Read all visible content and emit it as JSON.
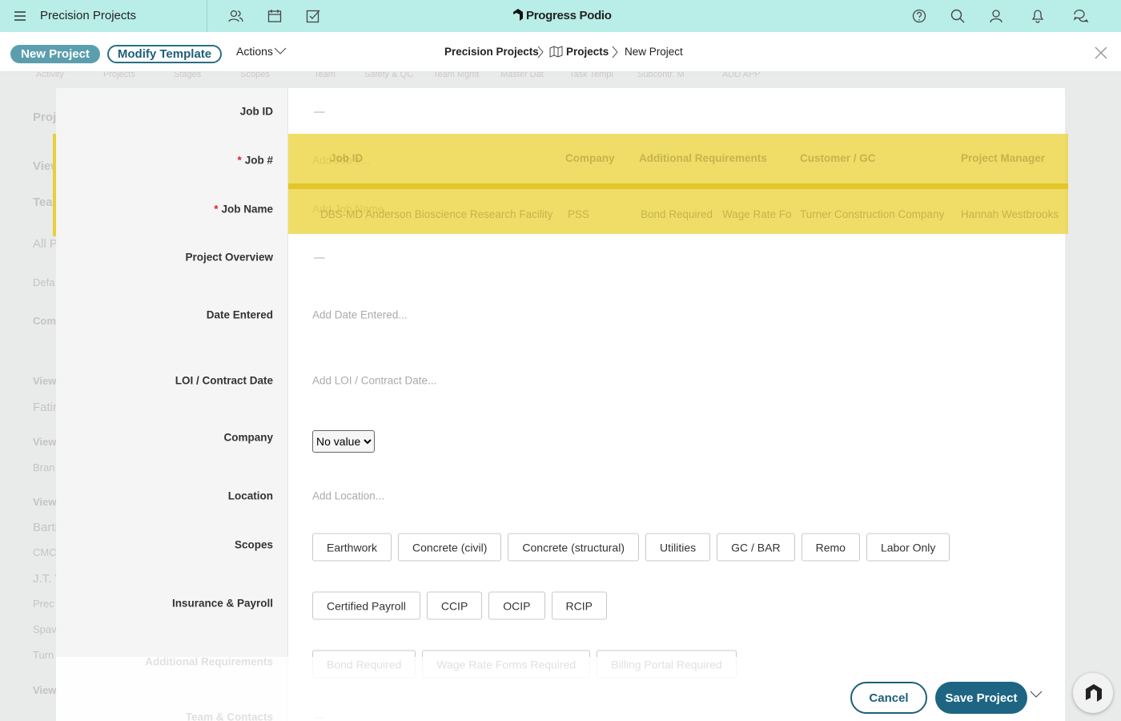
{
  "topbar": {
    "app_title": "Precision Projects",
    "brand": "Progress Podio"
  },
  "toolbar": {
    "buttons": [
      "New Project",
      "Modify Template"
    ],
    "actions": "Actions",
    "breadcrumb": [
      "Precision Projects",
      "Projects",
      "New Project"
    ]
  },
  "background": {
    "tabs": [
      "Activity",
      "Projects",
      "Stages",
      "Scopes",
      "Team",
      "Safety & QC",
      "Team Mgmt",
      "Master Dat",
      "Task Templ",
      "Subcontr. M",
      "ADD APP"
    ],
    "sidebar": [
      "Proj",
      "View",
      "Team",
      "All P",
      "Defa",
      "Com",
      "View",
      "Fatin",
      "View",
      "Bran",
      "View",
      "Barti",
      "CMC",
      "J.T. V",
      "Prec",
      "Spav",
      "Turn",
      "View"
    ],
    "table": {
      "headers": [
        "Job ID",
        "Company",
        "Additional Requirements",
        "Customer / GC",
        "Project Manager"
      ],
      "row": [
        "DBS-MD Anderson Bioscience Research Facility",
        "PSS",
        "Bond Required",
        "Wage Rate For",
        "Turner Construction Company",
        "Hannah Westbrooks"
      ]
    }
  },
  "form": {
    "fields": [
      {
        "label": "Job ID",
        "value": "—"
      },
      {
        "label": "Job #",
        "required": "*",
        "placeholder": "Add Job #..."
      },
      {
        "label": "Job Name",
        "required": "*",
        "placeholder": "Add Job Name..."
      },
      {
        "label": "Project Overview",
        "value": "—"
      },
      {
        "label": "Date Entered",
        "placeholder": "Add Date Entered..."
      },
      {
        "label": "LOI / Contract Date",
        "placeholder": "Add LOI / Contract Date..."
      },
      {
        "label": "Company",
        "select": "No value"
      },
      {
        "label": "Location",
        "placeholder": "Add Location..."
      },
      {
        "label": "Scopes",
        "options": [
          "Earthwork",
          "Concrete (civil)",
          "Concrete (structural)",
          "Utilities",
          "GC / BAR",
          "Remo",
          "Labor Only"
        ]
      },
      {
        "label": "Insurance & Payroll",
        "options": [
          "Certified Payroll",
          "CCIP",
          "OCIP",
          "RCIP"
        ]
      },
      {
        "label": "Additional Requirements",
        "options": [
          "Bond Required",
          "Wage Rate Forms Required",
          "Billing Portal Required"
        ]
      },
      {
        "label": "Team & Contacts",
        "value": "—"
      }
    ]
  },
  "footer": {
    "cancel": "Cancel",
    "save": "Save Project"
  }
}
